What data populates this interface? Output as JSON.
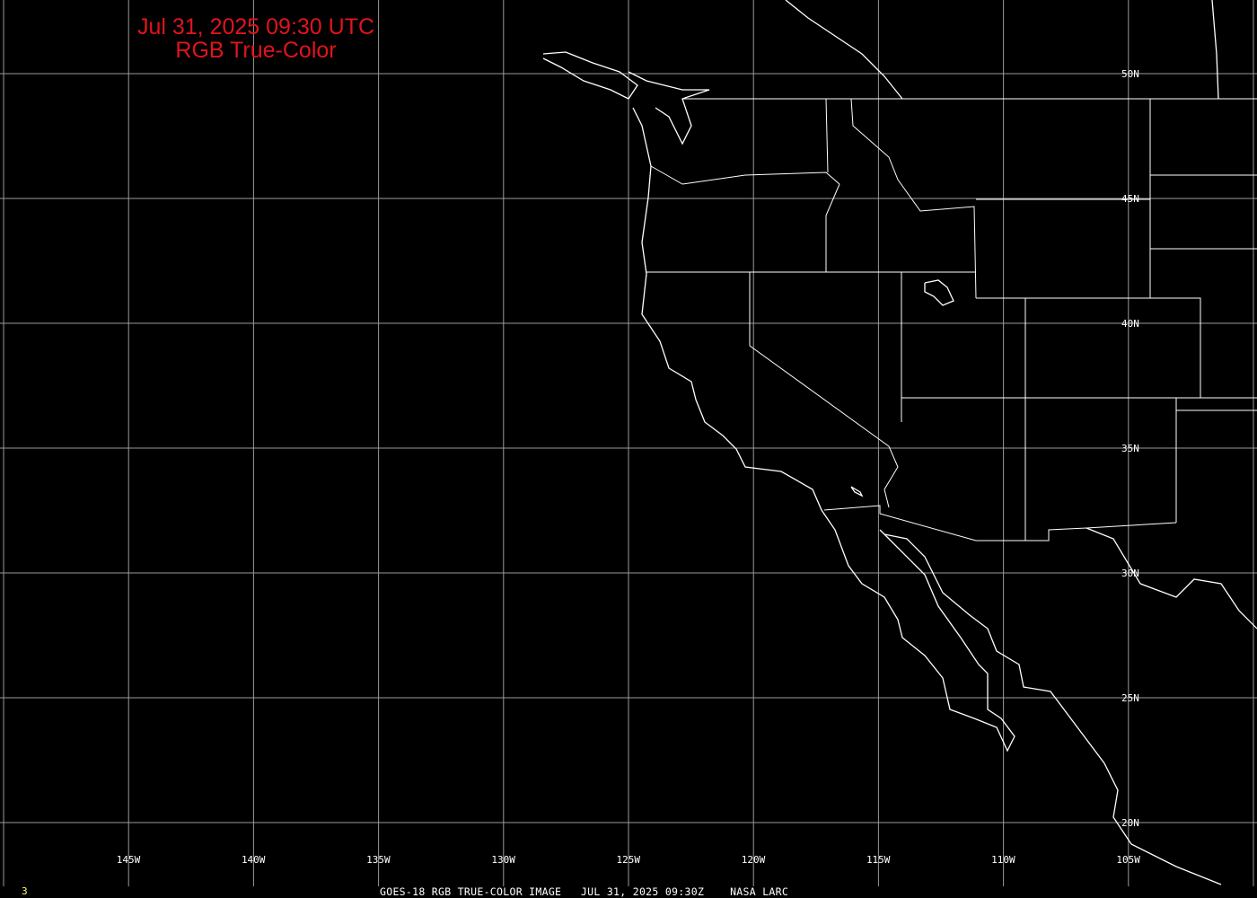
{
  "title": {
    "line1": "Jul 31, 2025 09:30 UTC",
    "line2": "RGB True-Color"
  },
  "colors": {
    "title": "#e0141c",
    "grid": "#9a9a9a",
    "boundaries": "#ffffff",
    "background": "#000000",
    "frame_number": "#ffff66"
  },
  "longitude_labels": [
    "145W",
    "140W",
    "135W",
    "130W",
    "125W",
    "120W",
    "115W",
    "110W",
    "105W"
  ],
  "latitude_labels": [
    "50N",
    "45N",
    "40N",
    "35N",
    "30N",
    "25N",
    "20N"
  ],
  "footer": {
    "text": "GOES-18 RGB TRUE-COLOR IMAGE   JUL 31, 2025 09:30Z    NASA LARC"
  },
  "frame_number": "3"
}
